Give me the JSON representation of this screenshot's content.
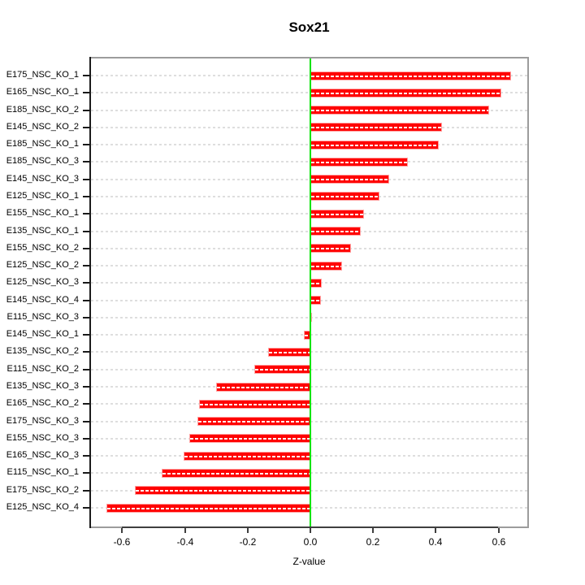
{
  "figure": {
    "title": "Sox21",
    "xlabel": "Z-value"
  },
  "chart_data": {
    "type": "bar",
    "orientation": "horizontal",
    "title": "Sox21",
    "xlabel": "Z-value",
    "ylabel": "",
    "xlim": [
      -0.7,
      0.7
    ],
    "xticks": [
      -0.6,
      -0.4,
      -0.2,
      0.0,
      0.2,
      0.4,
      0.6
    ],
    "grid": "dashed-row-lines",
    "legend": "none",
    "bar_color": "#ff0000",
    "bar_dash_color": "#ffffff",
    "zero_line_color": "#00e300",
    "grid_color": "#dedede",
    "box_color": "#9c9c9c",
    "axis_color": "#1a1a1a",
    "categories": [
      "E175_NSC_KO_1",
      "E165_NSC_KO_1",
      "E185_NSC_KO_2",
      "E145_NSC_KO_2",
      "E185_NSC_KO_1",
      "E185_NSC_KO_3",
      "E145_NSC_KO_3",
      "E125_NSC_KO_1",
      "E155_NSC_KO_1",
      "E135_NSC_KO_1",
      "E155_NSC_KO_2",
      "E125_NSC_KO_2",
      "E125_NSC_KO_3",
      "E145_NSC_KO_4",
      "E115_NSC_KO_3",
      "E145_NSC_KO_1",
      "E135_NSC_KO_2",
      "E115_NSC_KO_2",
      "E135_NSC_KO_3",
      "E165_NSC_KO_2",
      "E175_NSC_KO_3",
      "E155_NSC_KO_3",
      "E165_NSC_KO_3",
      "E115_NSC_KO_1",
      "E175_NSC_KO_2",
      "E125_NSC_KO_4"
    ],
    "values": [
      0.64,
      0.61,
      0.57,
      0.42,
      0.41,
      0.31,
      0.25,
      0.22,
      0.17,
      0.16,
      0.13,
      0.1,
      0.035,
      0.033,
      0.006,
      -0.022,
      -0.135,
      -0.178,
      -0.3,
      -0.355,
      -0.36,
      -0.385,
      -0.405,
      -0.475,
      -0.56,
      -0.65
    ]
  }
}
